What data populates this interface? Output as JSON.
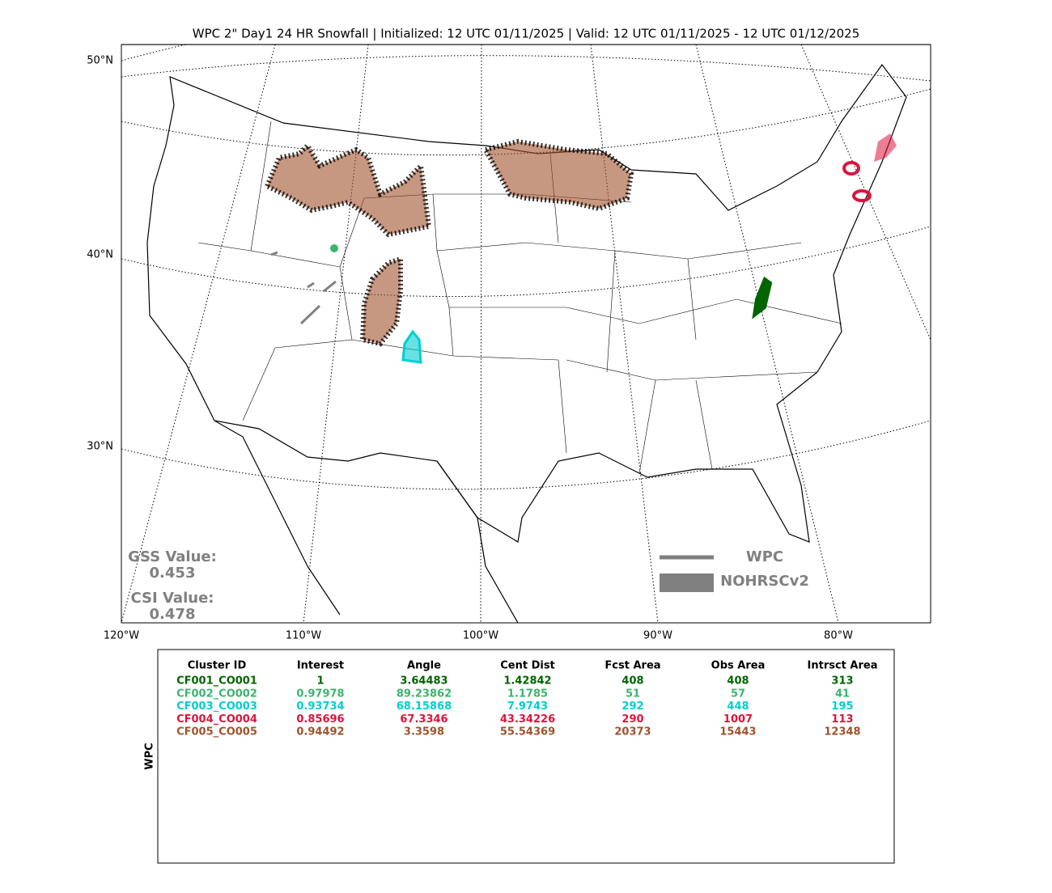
{
  "title": "WPC 2\" Day1 24 HR Snowfall | Initialized: 12 UTC 01/11/2025 | Valid: 12 UTC 01/11/2025 - 12 UTC 01/12/2025",
  "map": {
    "lat_labels": [
      "50°N",
      "40°N",
      "30°N"
    ],
    "lon_labels": [
      "120°W",
      "110°W",
      "100°W",
      "90°W",
      "80°W"
    ],
    "scores": [
      {
        "label": "GSS Value:",
        "value": "0.453"
      },
      {
        "label": "CSI Value:",
        "value": "0.478"
      }
    ],
    "legend": [
      "WPC",
      "NOHRSCv2"
    ]
  },
  "table": {
    "side_label": "WPC",
    "columns": [
      "Cluster ID",
      "Interest",
      "Angle",
      "Cent Dist",
      "Fcst Area",
      "Obs Area",
      "Intrsct Area"
    ],
    "row_colors": [
      "#006400",
      "#3cb371",
      "#00ced1",
      "#dc143c",
      "#a0522d"
    ],
    "rows": [
      [
        "CF001_CO001",
        "1",
        "3.64483",
        "1.42842",
        "408",
        "408",
        "313"
      ],
      [
        "CF002_CO002",
        "0.97978",
        "89.23862",
        "1.1785",
        "51",
        "57",
        "41"
      ],
      [
        "CF003_CO003",
        "0.93734",
        "68.15868",
        "7.9743",
        "292",
        "448",
        "195"
      ],
      [
        "CF004_CO004",
        "0.85696",
        "67.3346",
        "43.34226",
        "290",
        "1007",
        "113"
      ],
      [
        "CF005_CO005",
        "0.94492",
        "3.3598",
        "55.54369",
        "20373",
        "15443",
        "12348"
      ]
    ]
  }
}
